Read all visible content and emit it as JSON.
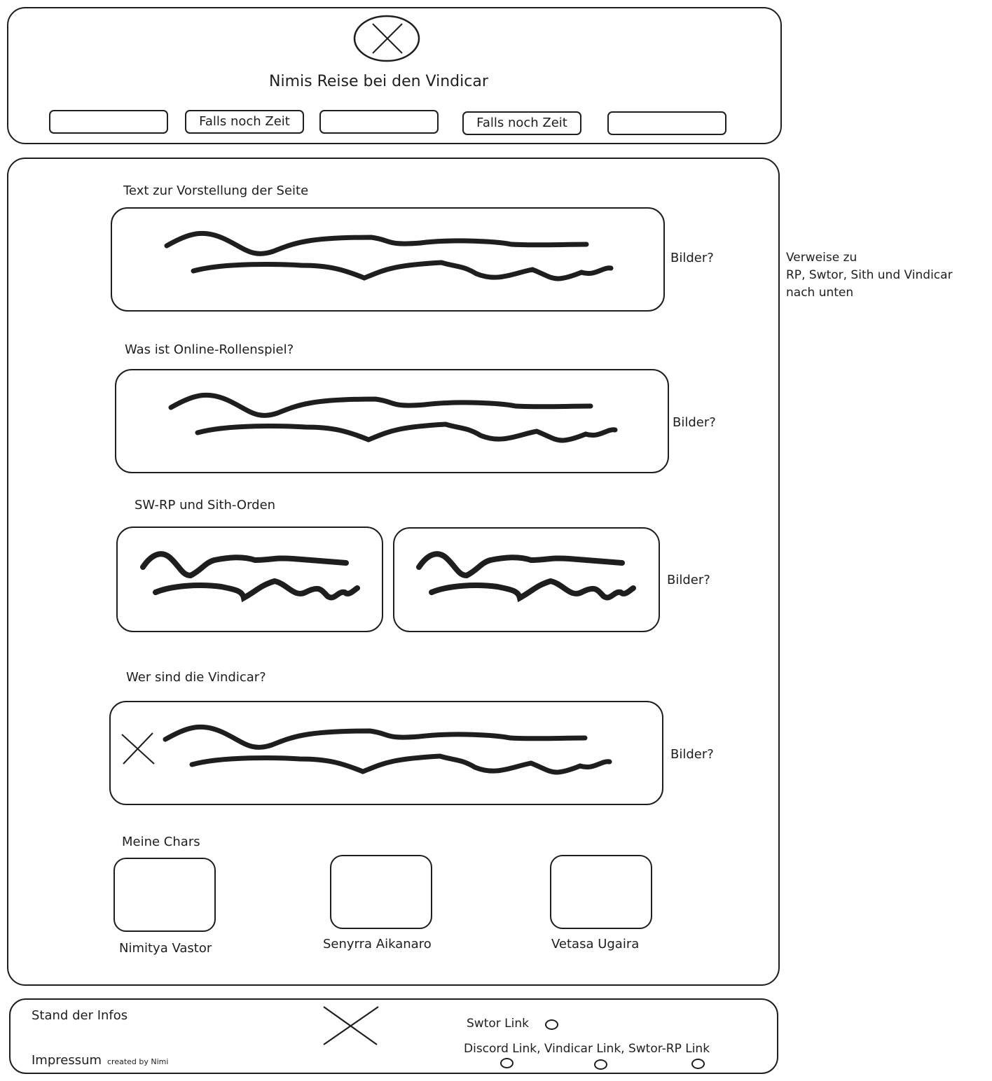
{
  "header": {
    "title": "Nimis Reise bei den Vindicar",
    "logo_icon": "close-icon",
    "nav": [
      {
        "label": ""
      },
      {
        "label": "Falls noch Zeit"
      },
      {
        "label": ""
      },
      {
        "label": "Falls noch Zeit"
      },
      {
        "label": ""
      }
    ]
  },
  "main": {
    "sections": [
      {
        "title": "Text zur Vorstellung der Seite",
        "aside": "Bilder?"
      },
      {
        "title": "Was ist Online-Rollenspiel?",
        "aside": "Bilder?"
      },
      {
        "title": "SW-RP und Sith-Orden",
        "aside": "Bilder?"
      },
      {
        "title": "Wer sind die Vindicar?",
        "aside": "Bilder?"
      }
    ],
    "chars": {
      "title": "Meine Chars",
      "items": [
        {
          "name": "Nimitya Vastor"
        },
        {
          "name": "Senyrra Aikanaro"
        },
        {
          "name": "Vetasa Ugaira"
        }
      ]
    }
  },
  "side_note": {
    "lines": [
      "Verweise zu",
      "RP, Swtor, Sith und Vindicar",
      "nach unten"
    ]
  },
  "footer": {
    "stand": "Stand der Infos",
    "impressum": "Impressum",
    "created_by": "created by Nimi",
    "swtor_link": "Swtor Link",
    "links": "Discord Link, Vindicar Link, Swtor-RP Link"
  }
}
